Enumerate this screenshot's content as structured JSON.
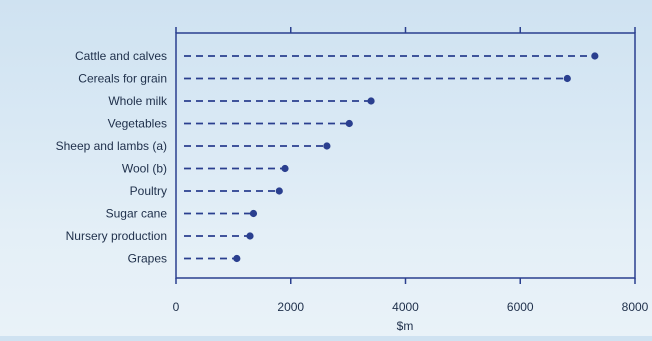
{
  "chart_data": {
    "type": "dot",
    "title": "",
    "categories": [
      "Cattle and calves",
      "Cereals for grain",
      "Whole milk",
      "Vegetables",
      "Sheep and lambs (a)",
      "Wool (b)",
      "Poultry",
      "Sugar cane",
      "Nursery production",
      "Grapes"
    ],
    "values": [
      7300,
      6820,
      3400,
      3020,
      2630,
      1900,
      1800,
      1350,
      1290,
      1060
    ],
    "xlabel": "$m",
    "ylabel": "",
    "xlim": [
      0,
      8000
    ],
    "xticks": [
      0,
      2000,
      4000,
      6000,
      8000
    ],
    "grid": false,
    "legend": "none",
    "colors": {
      "marker": "#2a3f8f",
      "dash": "#2a3f8f",
      "frame": "#2a3f8f",
      "text": "#1e2f4a"
    }
  }
}
